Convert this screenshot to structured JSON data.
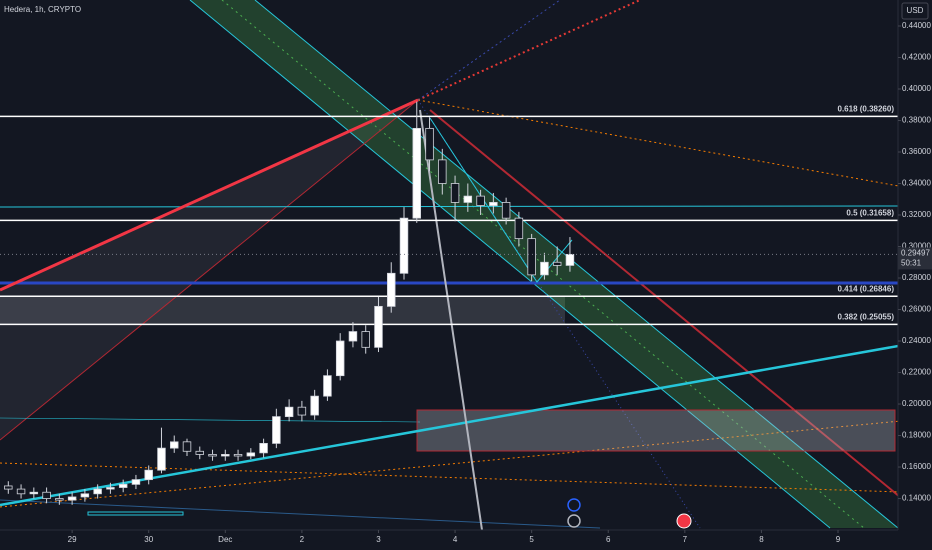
{
  "chart_data": {
    "type": "candlestick",
    "title": "Hedera, 1h, CRYPTO",
    "currency": "USD",
    "x": [
      -20,
      -16,
      -12,
      -8,
      -4,
      0,
      4,
      8,
      12,
      16,
      20,
      24,
      28,
      32,
      36,
      40,
      44,
      48,
      52,
      56,
      60,
      64,
      68,
      72,
      76,
      80,
      84,
      88,
      92,
      96,
      100,
      104,
      108,
      112,
      116,
      120,
      124,
      128,
      132,
      136,
      140,
      144,
      148,
      152,
      156
    ],
    "open": [
      0.148,
      0.146,
      0.143,
      0.144,
      0.14,
      0.139,
      0.141,
      0.143,
      0.146,
      0.147,
      0.149,
      0.152,
      0.158,
      0.172,
      0.176,
      0.17,
      0.168,
      0.167,
      0.168,
      0.167,
      0.169,
      0.175,
      0.192,
      0.198,
      0.193,
      0.205,
      0.218,
      0.24,
      0.246,
      0.236,
      0.262,
      0.283,
      0.318,
      0.375,
      0.355,
      0.34,
      0.328,
      0.332,
      0.326,
      0.328,
      0.318,
      0.305,
      0.282,
      0.29,
      0.288
    ],
    "high": [
      0.151,
      0.149,
      0.147,
      0.147,
      0.143,
      0.144,
      0.146,
      0.149,
      0.15,
      0.152,
      0.155,
      0.161,
      0.185,
      0.18,
      0.178,
      0.173,
      0.171,
      0.171,
      0.171,
      0.172,
      0.178,
      0.197,
      0.203,
      0.202,
      0.209,
      0.222,
      0.245,
      0.252,
      0.25,
      0.268,
      0.29,
      0.325,
      0.392,
      0.382,
      0.362,
      0.345,
      0.34,
      0.336,
      0.334,
      0.331,
      0.322,
      0.308,
      0.296,
      0.3,
      0.306
    ],
    "low": [
      0.143,
      0.14,
      0.14,
      0.137,
      0.136,
      0.136,
      0.138,
      0.14,
      0.143,
      0.144,
      0.146,
      0.149,
      0.156,
      0.169,
      0.167,
      0.165,
      0.164,
      0.164,
      0.164,
      0.165,
      0.166,
      0.172,
      0.189,
      0.189,
      0.19,
      0.202,
      0.215,
      0.236,
      0.232,
      0.233,
      0.258,
      0.279,
      0.315,
      0.348,
      0.333,
      0.316,
      0.322,
      0.32,
      0.321,
      0.314,
      0.3,
      0.278,
      0.279,
      0.282,
      0.284
    ],
    "close": [
      0.146,
      0.143,
      0.144,
      0.14,
      0.139,
      0.141,
      0.143,
      0.146,
      0.147,
      0.149,
      0.152,
      0.158,
      0.172,
      0.176,
      0.17,
      0.168,
      0.167,
      0.168,
      0.167,
      0.169,
      0.175,
      0.192,
      0.198,
      0.193,
      0.205,
      0.218,
      0.24,
      0.246,
      0.236,
      0.262,
      0.283,
      0.318,
      0.375,
      0.355,
      0.34,
      0.328,
      0.332,
      0.326,
      0.328,
      0.318,
      0.305,
      0.282,
      0.29,
      0.288,
      0.295
    ],
    "up_color": "#ffffff",
    "down_color": "#131722",
    "xlim": [
      -22.6,
      258.8
    ],
    "xticks": [
      {
        "value": 0,
        "label": "29"
      },
      {
        "value": 24,
        "label": "30"
      },
      {
        "value": 48,
        "label": "Dec"
      },
      {
        "value": 72,
        "label": "2"
      },
      {
        "value": 96,
        "label": "3"
      },
      {
        "value": 120,
        "label": "4"
      },
      {
        "value": 144,
        "label": "5"
      },
      {
        "value": 168,
        "label": "6"
      },
      {
        "value": 192,
        "label": "7"
      },
      {
        "value": 216,
        "label": "8"
      },
      {
        "value": 240,
        "label": "9"
      }
    ],
    "ylim": [
      0.1232,
      0.4565
    ],
    "yticks": [
      {
        "value": 0.14,
        "label": "0.14000"
      },
      {
        "value": 0.16,
        "label": "0.16000"
      },
      {
        "value": 0.18,
        "label": "0.18000"
      },
      {
        "value": 0.2,
        "label": "0.20000"
      },
      {
        "value": 0.22,
        "label": "0.22000"
      },
      {
        "value": 0.24,
        "label": "0.24000"
      },
      {
        "value": 0.26,
        "label": "0.26000"
      },
      {
        "value": 0.28,
        "label": "0.28000"
      },
      {
        "value": 0.3,
        "label": "0.30000"
      },
      {
        "value": 0.32,
        "label": "0.32000"
      },
      {
        "value": 0.34,
        "label": "0.34000"
      },
      {
        "value": 0.36,
        "label": "0.36000"
      },
      {
        "value": 0.38,
        "label": "0.38000"
      },
      {
        "value": 0.4,
        "label": "0.40000"
      },
      {
        "value": 0.42,
        "label": "0.42000"
      },
      {
        "value": 0.44,
        "label": "0.44000"
      }
    ],
    "levels": [
      {
        "value": 0.3826,
        "label": "0.618 (0.38260)"
      },
      {
        "value": 0.31658,
        "label": "0.5 (0.31658)"
      },
      {
        "value": 0.26846,
        "label": "0.414 (0.26846)"
      },
      {
        "value": 0.25055,
        "label": "0.382 (0.25055)"
      }
    ],
    "last_price": {
      "value": 0.29497,
      "label": "0.29497",
      "countdown": "50:31"
    }
  }
}
